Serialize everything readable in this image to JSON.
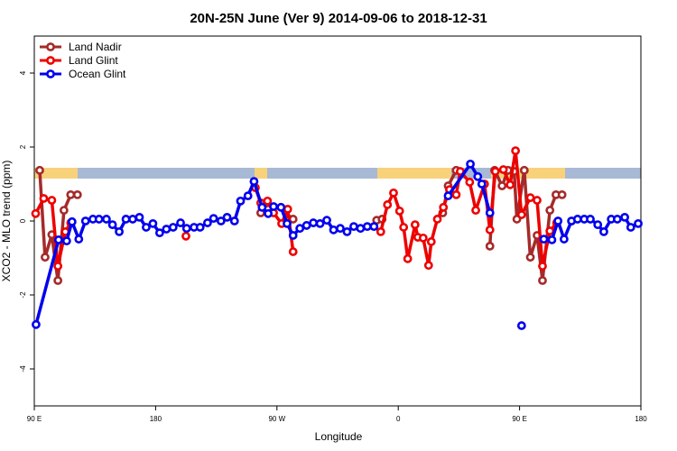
{
  "chart_data": {
    "type": "line",
    "title": "20N-25N June (Ver 9)   2014-09-06 to 2018-12-31",
    "x_label": "Longitude",
    "y_label": "XCO2 - MLO trend (ppm)",
    "xlim": [
      90,
      540
    ],
    "ylim": [
      -5,
      5
    ],
    "xticks": [
      {
        "value": 90,
        "label": "90 E"
      },
      180,
      {
        "value": 270,
        "label": "90 W"
      },
      {
        "value": 360,
        "label": "0"
      },
      {
        "value": 450,
        "label": "90 E"
      },
      {
        "value": 540,
        "label": "180"
      }
    ],
    "yticks": [
      -4,
      -2,
      0,
      2,
      4
    ],
    "legend": "top-left",
    "series": [
      {
        "name": "Land Nadir",
        "color": "#a52a2a",
        "x": [
          94,
          98,
          103,
          107.5,
          112,
          117,
          122,
          null,
          258,
          263.5,
          null,
          279,
          282,
          null,
          344,
          348,
          null,
          393,
          397,
          403,
          null,
          428,
          431.5,
          437,
          441.5,
          446,
          448,
          453.5,
          458,
          463,
          467,
          472.5,
          477,
          481.5
        ],
        "values": [
          1.37,
          -0.98,
          -0.37,
          -1.61,
          0.29,
          0.71,
          0.71,
          null,
          0.22,
          0.32,
          null,
          0.05,
          0.05,
          null,
          0.02,
          0.05,
          null,
          0.22,
          0.95,
          1.37,
          null,
          -0.68,
          1.37,
          0.95,
          1.37,
          1.34,
          0.05,
          1.37,
          -0.98,
          -0.39,
          -1.61,
          0.29,
          0.71,
          0.71
        ]
      },
      {
        "name": "Land Glint",
        "color": "#ee0000",
        "x": [
          91,
          97,
          103,
          107.5,
          113,
          117,
          null,
          202.5,
          null,
          254,
          258,
          263,
          267.5,
          273.5,
          278,
          282,
          null,
          347,
          352,
          356.5,
          361,
          364,
          367,
          372.5,
          374.5,
          378.5,
          382.5,
          384.5,
          389,
          393.5,
          398,
          403,
          406,
          413,
          417.5,
          424,
          428,
          432,
          438,
          443,
          447,
          451.5,
          458,
          463,
          467,
          472.5,
          477.5
        ],
        "values": [
          0.2,
          0.61,
          0.56,
          -1.22,
          -0.29,
          -0.05,
          null,
          -0.41,
          null,
          0.9,
          0.49,
          0.54,
          0.22,
          -0.07,
          0.32,
          -0.83,
          null,
          -0.29,
          0.44,
          0.76,
          0.27,
          -0.17,
          -1.02,
          -0.1,
          -0.44,
          -0.46,
          -1.2,
          -0.56,
          0.05,
          0.37,
          0.85,
          0.71,
          1.34,
          1.05,
          0.29,
          1.0,
          -0.24,
          1.34,
          1.39,
          0.98,
          1.9,
          0.17,
          0.63,
          0.56,
          -1.22,
          -0.27,
          -0.05
        ]
      },
      {
        "name": "Ocean Glint",
        "color": "#0000ee",
        "x": [
          91.3,
          108,
          114,
          118,
          123,
          128,
          133.5,
          138,
          143.5,
          148,
          153,
          158,
          163,
          168,
          173,
          178,
          183,
          188,
          193,
          198.5,
          203,
          208.5,
          213,
          218.5,
          223,
          228.5,
          233,
          238.5,
          243,
          248.5,
          253,
          259,
          263.5,
          267.5,
          273,
          277.5,
          282,
          287,
          292,
          297,
          302,
          307,
          312,
          317,
          322,
          327,
          332,
          337,
          342,
          null,
          397,
          413.5,
          419,
          422,
          428,
          null,
          451.5,
          null,
          468,
          474,
          478.5,
          483,
          488.5,
          493,
          498,
          502.5,
          508,
          512.5,
          518,
          522.5,
          528,
          532.5,
          538
        ],
        "values": [
          -2.8,
          -0.51,
          -0.54,
          -0.02,
          -0.49,
          0.0,
          0.05,
          0.05,
          0.05,
          -0.1,
          -0.29,
          0.05,
          0.05,
          0.1,
          -0.17,
          -0.07,
          -0.32,
          -0.22,
          -0.17,
          -0.05,
          -0.2,
          -0.17,
          -0.17,
          -0.05,
          0.07,
          0.0,
          0.1,
          0.0,
          0.54,
          0.68,
          1.07,
          0.37,
          0.2,
          0.39,
          0.37,
          -0.07,
          -0.39,
          -0.2,
          -0.12,
          -0.05,
          -0.07,
          0.02,
          -0.24,
          -0.2,
          -0.29,
          -0.15,
          -0.2,
          -0.15,
          -0.15,
          null,
          0.68,
          1.54,
          1.2,
          1.0,
          0.22,
          null,
          -2.83,
          null,
          -0.49,
          -0.51,
          0.0,
          -0.49,
          0.0,
          0.05,
          0.05,
          0.05,
          -0.1,
          -0.29,
          0.05,
          0.05,
          0.1,
          -0.17,
          -0.07
        ]
      }
    ]
  }
}
